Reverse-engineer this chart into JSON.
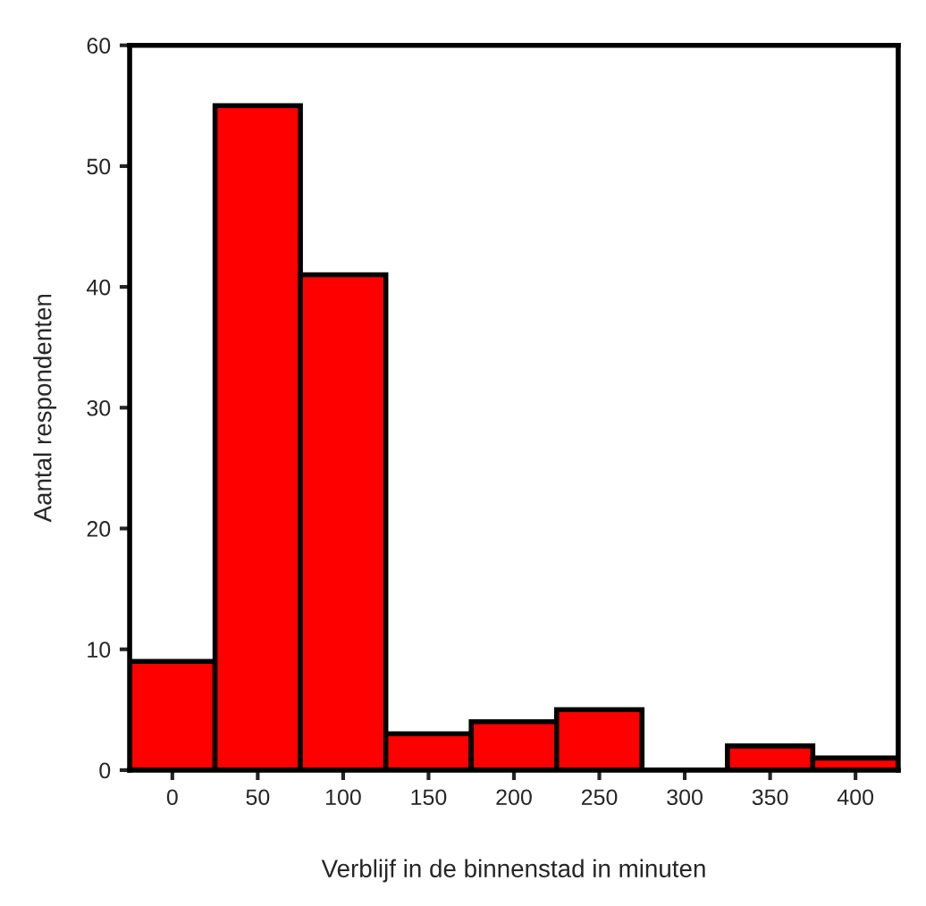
{
  "chart_data": {
    "type": "histogram",
    "xlabel": "Verblijf in de binnenstad in minuten",
    "ylabel": "Aantal respondenten",
    "bins": [
      -25,
      25,
      75,
      125,
      175,
      225,
      275,
      325,
      375,
      425
    ],
    "values": [
      9,
      55,
      41,
      3,
      4,
      5,
      0,
      2,
      1
    ],
    "color": "#ff0000",
    "xlim": [
      -25,
      425
    ],
    "xticks": [
      0,
      50,
      100,
      150,
      200,
      250,
      300,
      350,
      400
    ],
    "ylim": [
      0,
      60
    ],
    "yticks": [
      0,
      10,
      20,
      30,
      40,
      50,
      60
    ],
    "grid": false
  }
}
